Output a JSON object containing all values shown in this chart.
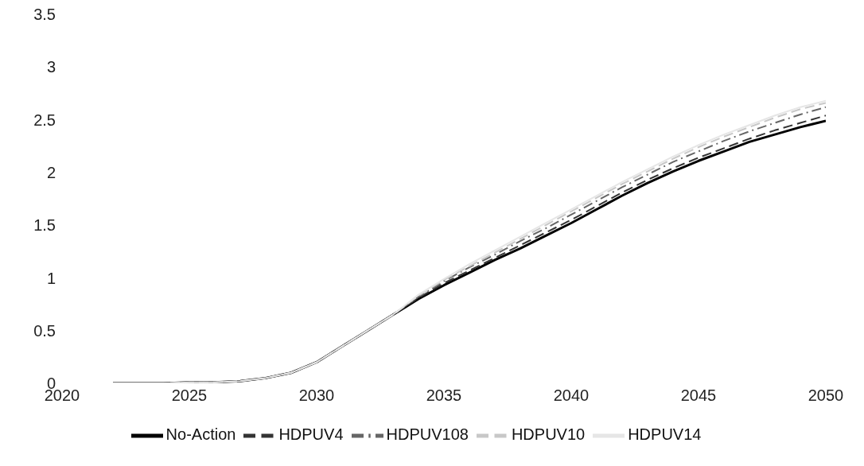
{
  "chart_data": {
    "type": "line",
    "x": [
      2022,
      2023,
      2024,
      2025,
      2026,
      2027,
      2028,
      2029,
      2030,
      2031,
      2032,
      2033,
      2034,
      2035,
      2036,
      2037,
      2038,
      2039,
      2040,
      2041,
      2042,
      2043,
      2044,
      2045,
      2046,
      2047,
      2048,
      2049,
      2050
    ],
    "series": [
      {
        "name": "No-Action",
        "color": "#000000",
        "line_style": "solid",
        "values": [
          0,
          0,
          0,
          0.01,
          0.01,
          0.02,
          0.05,
          0.1,
          0.2,
          0.35,
          0.5,
          0.65,
          0.8,
          0.93,
          1.05,
          1.17,
          1.28,
          1.4,
          1.52,
          1.65,
          1.78,
          1.9,
          2.01,
          2.11,
          2.2,
          2.29,
          2.36,
          2.43,
          2.49
        ]
      },
      {
        "name": "HDPUV4",
        "color": "#333333",
        "line_style": "dashed",
        "values": [
          0,
          0,
          0,
          0.01,
          0.01,
          0.02,
          0.05,
          0.1,
          0.2,
          0.35,
          0.5,
          0.65,
          0.81,
          0.95,
          1.07,
          1.19,
          1.31,
          1.43,
          1.55,
          1.68,
          1.81,
          1.93,
          2.04,
          2.14,
          2.23,
          2.32,
          2.4,
          2.47,
          2.54
        ]
      },
      {
        "name": "HDPUV108",
        "color": "#666666",
        "line_style": "dashdot",
        "values": [
          0,
          0,
          0,
          0.01,
          0.01,
          0.02,
          0.05,
          0.1,
          0.2,
          0.35,
          0.5,
          0.65,
          0.82,
          0.97,
          1.1,
          1.22,
          1.35,
          1.47,
          1.6,
          1.73,
          1.86,
          1.98,
          2.1,
          2.2,
          2.3,
          2.39,
          2.47,
          2.55,
          2.62
        ]
      },
      {
        "name": "HDPUV10",
        "color": "#c8c8c8",
        "line_style": "dashed",
        "values": [
          0,
          0,
          0,
          0.01,
          0.01,
          0.02,
          0.05,
          0.1,
          0.2,
          0.35,
          0.5,
          0.65,
          0.83,
          0.98,
          1.11,
          1.24,
          1.37,
          1.5,
          1.63,
          1.76,
          1.89,
          2.01,
          2.13,
          2.24,
          2.34,
          2.43,
          2.52,
          2.6,
          2.66
        ]
      },
      {
        "name": "HDPUV14",
        "color": "#e6e6e6",
        "line_style": "solid",
        "values": [
          0,
          0,
          0,
          0.01,
          0.01,
          0.02,
          0.05,
          0.1,
          0.2,
          0.35,
          0.5,
          0.65,
          0.84,
          0.99,
          1.13,
          1.26,
          1.39,
          1.52,
          1.65,
          1.78,
          1.91,
          2.03,
          2.15,
          2.26,
          2.36,
          2.45,
          2.54,
          2.62,
          2.68
        ]
      }
    ],
    "xlim": [
      2020,
      2050
    ],
    "xticks": [
      2020,
      2025,
      2030,
      2035,
      2040,
      2045,
      2050
    ],
    "ylim": [
      0,
      3.5
    ],
    "yticks": [
      0,
      0.5,
      1,
      1.5,
      2,
      2.5,
      3,
      3.5
    ],
    "grid": false,
    "legend": "bottom",
    "marker": "none"
  }
}
